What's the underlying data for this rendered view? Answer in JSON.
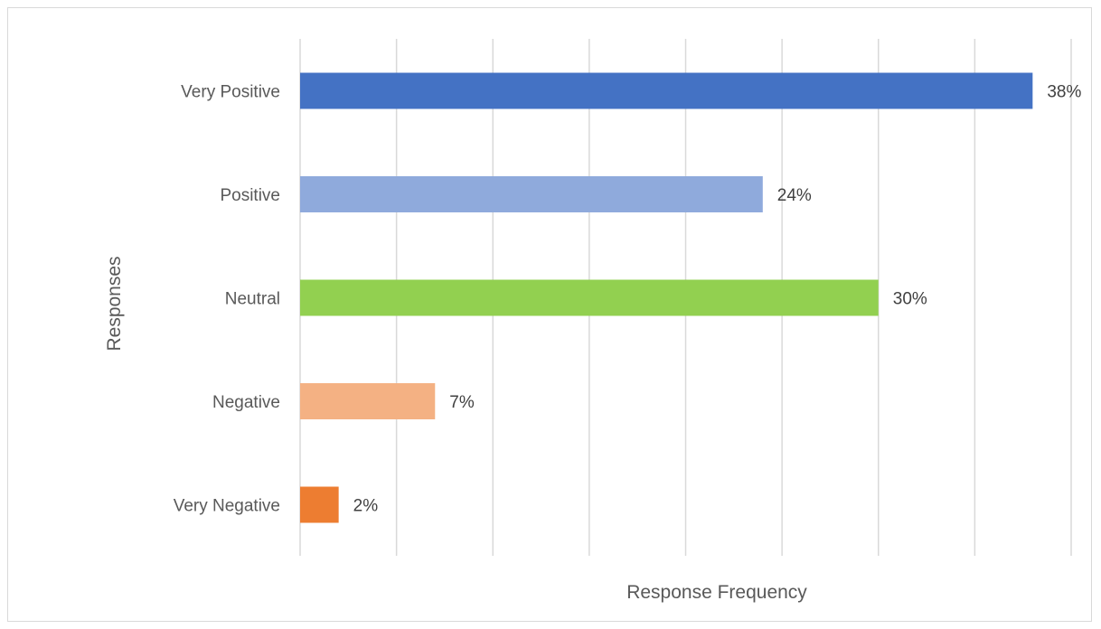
{
  "chart_data": {
    "type": "bar",
    "orientation": "horizontal",
    "categories": [
      "Very Positive",
      "Positive",
      "Neutral",
      "Negative",
      "Very Negative"
    ],
    "values": [
      38,
      24,
      30,
      7,
      2
    ],
    "value_labels": [
      "38%",
      "24%",
      "30%",
      "7%",
      "2%"
    ],
    "colors": [
      "#4472c4",
      "#8faadc",
      "#92d050",
      "#f4b183",
      "#ed7d31"
    ],
    "xlabel": "Response Frequency",
    "ylabel": "Responses",
    "xlim": [
      0,
      40
    ],
    "grid": true,
    "legend": "none"
  }
}
